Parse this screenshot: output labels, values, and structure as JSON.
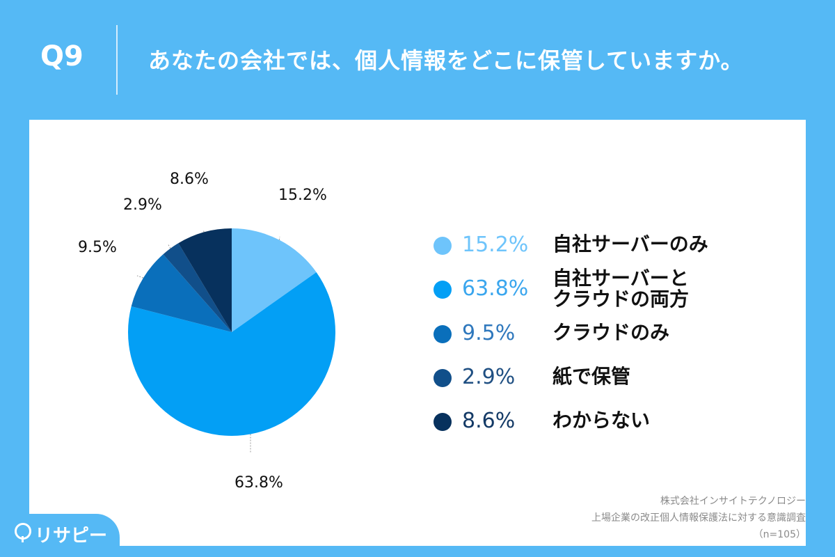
{
  "header": {
    "question_number": "Q9",
    "question": "あなたの会社では、個人情報をどこに保管していますか。"
  },
  "chart_data": {
    "type": "pie",
    "title": "",
    "slices": [
      {
        "label": "自社サーバーのみ",
        "value": 15.2,
        "value_label": "15.2%",
        "color": "#6ec4fb"
      },
      {
        "label": "自社サーバーとクラウドの両方",
        "label_lines": [
          "自社サーバーと",
          "クラウドの両方"
        ],
        "value": 63.8,
        "value_label": "63.8%",
        "color": "#039ff5"
      },
      {
        "label": "クラウドのみ",
        "value": 9.5,
        "value_label": "9.5%",
        "color": "#0a6fbb"
      },
      {
        "label": "紙で保管",
        "value": 2.9,
        "value_label": "2.9%",
        "color": "#114f8a"
      },
      {
        "label": "わからない",
        "value": 8.6,
        "value_label": "8.6%",
        "color": "#07315d"
      }
    ],
    "start_angle_deg": 0,
    "direction": "clockwise",
    "legend_position": "right"
  },
  "legend_colors": {
    "pct_text": [
      "#6ec4fb",
      "#3aa6ee",
      "#2f78bd",
      "#1f4f82",
      "#143a66"
    ]
  },
  "footer": {
    "company": "株式会社インサイトテクノロジー",
    "survey": "上場企業の改正個人情報保護法に対する意識調査",
    "sample": "（n=105）"
  },
  "brand": {
    "name": "リサピー"
  }
}
